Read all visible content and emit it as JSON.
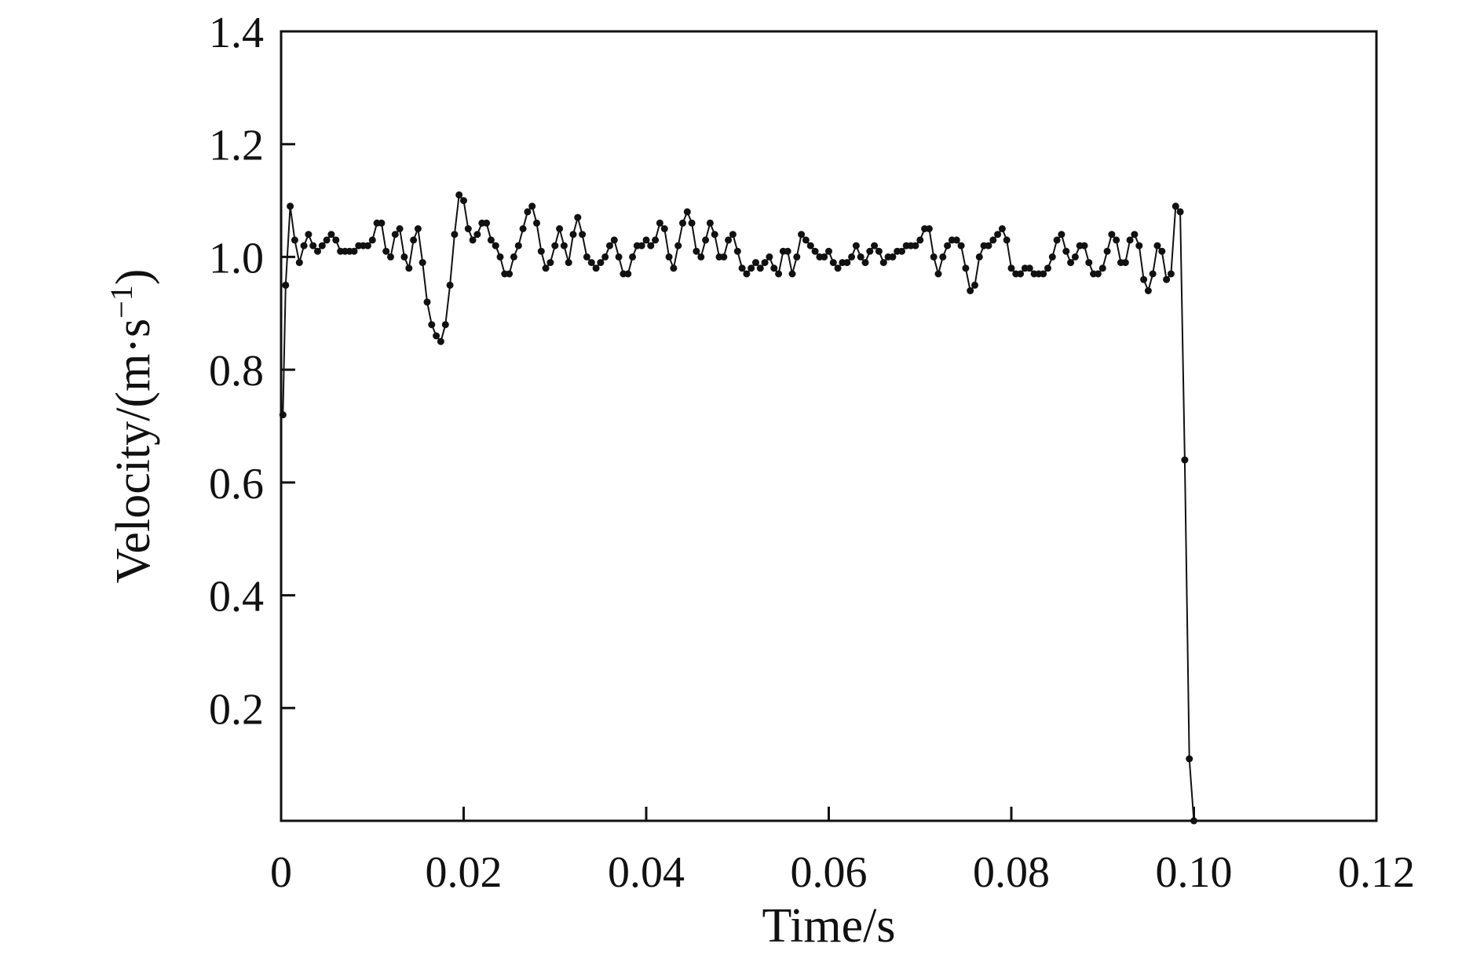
{
  "chart_data": {
    "type": "line",
    "title": "",
    "xlabel": "Time/s",
    "ylabel": "Velocity/(m·s",
    "ylabel_sup": "−1",
    "ylabel_close": ")",
    "xlim": [
      0,
      0.12
    ],
    "ylim": [
      0,
      1.4
    ],
    "x_ticks": [
      0,
      0.02,
      0.04,
      0.06,
      0.08,
      0.1,
      0.12
    ],
    "x_tick_labels": [
      "0",
      "0.02",
      "0.04",
      "0.06",
      "0.08",
      "0.10",
      "0.12"
    ],
    "y_ticks": [
      0.2,
      0.4,
      0.6,
      0.8,
      1.0,
      1.2,
      1.4
    ],
    "y_tick_labels": [
      "0.2",
      "0.4",
      "0.6",
      "0.8",
      "1.0",
      "1.2",
      "1.4"
    ],
    "grid": false,
    "legend": "none",
    "line_color": "#111111",
    "marker": "circle",
    "series": [
      {
        "x": [
          0.0002,
          0.0005,
          0.001,
          0.0015,
          0.002,
          0.0025,
          0.003,
          0.0035,
          0.004,
          0.0045,
          0.005,
          0.0055,
          0.006,
          0.0065,
          0.007,
          0.0075,
          0.008,
          0.0085,
          0.009,
          0.0095,
          0.01,
          0.0105,
          0.011,
          0.0115,
          0.012,
          0.0125,
          0.013,
          0.0135,
          0.014,
          0.0145,
          0.015,
          0.0155,
          0.016,
          0.0165,
          0.017,
          0.0175,
          0.018,
          0.0185,
          0.019,
          0.0195,
          0.02,
          0.0205,
          0.021,
          0.0215,
          0.022,
          0.0225,
          0.023,
          0.0235,
          0.024,
          0.0245,
          0.025,
          0.0255,
          0.026,
          0.0265,
          0.027,
          0.0275,
          0.028,
          0.0285,
          0.029,
          0.0295,
          0.03,
          0.0305,
          0.031,
          0.0315,
          0.032,
          0.0325,
          0.033,
          0.0335,
          0.034,
          0.0345,
          0.035,
          0.0355,
          0.036,
          0.0365,
          0.037,
          0.0375,
          0.038,
          0.0385,
          0.039,
          0.0395,
          0.04,
          0.0405,
          0.041,
          0.0415,
          0.042,
          0.0425,
          0.043,
          0.0435,
          0.044,
          0.0445,
          0.045,
          0.0455,
          0.046,
          0.0465,
          0.047,
          0.0475,
          0.048,
          0.0485,
          0.049,
          0.0495,
          0.05,
          0.0505,
          0.051,
          0.0515,
          0.052,
          0.0525,
          0.053,
          0.0535,
          0.054,
          0.0545,
          0.055,
          0.0555,
          0.056,
          0.0565,
          0.057,
          0.0575,
          0.058,
          0.0585,
          0.059,
          0.0595,
          0.06,
          0.0605,
          0.061,
          0.0615,
          0.062,
          0.0625,
          0.063,
          0.0635,
          0.064,
          0.0645,
          0.065,
          0.0655,
          0.066,
          0.0665,
          0.067,
          0.0675,
          0.068,
          0.0685,
          0.069,
          0.0695,
          0.07,
          0.0705,
          0.071,
          0.0715,
          0.072,
          0.0725,
          0.073,
          0.0735,
          0.074,
          0.0745,
          0.075,
          0.0755,
          0.076,
          0.0765,
          0.077,
          0.0775,
          0.078,
          0.0785,
          0.079,
          0.0795,
          0.08,
          0.0805,
          0.081,
          0.0815,
          0.082,
          0.0825,
          0.083,
          0.0835,
          0.084,
          0.0845,
          0.085,
          0.0855,
          0.086,
          0.0865,
          0.087,
          0.0875,
          0.088,
          0.0885,
          0.089,
          0.0895,
          0.09,
          0.0905,
          0.091,
          0.0915,
          0.092,
          0.0925,
          0.093,
          0.0935,
          0.094,
          0.0945,
          0.095,
          0.0955,
          0.096,
          0.0965,
          0.097,
          0.0975,
          0.098,
          0.0985,
          0.099,
          0.0995,
          0.1
        ],
        "y": [
          0.72,
          0.95,
          1.09,
          1.03,
          0.99,
          1.02,
          1.04,
          1.02,
          1.01,
          1.02,
          1.03,
          1.04,
          1.03,
          1.01,
          1.01,
          1.01,
          1.01,
          1.02,
          1.02,
          1.02,
          1.03,
          1.06,
          1.06,
          1.01,
          1.0,
          1.04,
          1.05,
          1.0,
          0.98,
          1.03,
          1.05,
          0.99,
          0.92,
          0.88,
          0.86,
          0.85,
          0.88,
          0.95,
          1.04,
          1.11,
          1.1,
          1.05,
          1.03,
          1.04,
          1.06,
          1.06,
          1.03,
          1.02,
          1.0,
          0.97,
          0.97,
          1.0,
          1.02,
          1.05,
          1.08,
          1.09,
          1.06,
          1.01,
          0.98,
          0.99,
          1.02,
          1.05,
          1.02,
          0.99,
          1.04,
          1.07,
          1.04,
          1.0,
          0.99,
          0.98,
          0.99,
          1.0,
          1.02,
          1.03,
          1.0,
          0.97,
          0.97,
          1.0,
          1.02,
          1.02,
          1.03,
          1.02,
          1.03,
          1.06,
          1.05,
          1.0,
          0.98,
          1.02,
          1.06,
          1.08,
          1.06,
          1.01,
          1.0,
          1.03,
          1.06,
          1.04,
          1.0,
          1.0,
          1.03,
          1.04,
          1.01,
          0.98,
          0.97,
          0.98,
          0.99,
          0.98,
          0.99,
          1.0,
          0.98,
          0.97,
          1.01,
          1.01,
          0.97,
          1.0,
          1.04,
          1.03,
          1.02,
          1.01,
          1.0,
          1.0,
          1.01,
          0.99,
          0.98,
          0.99,
          0.99,
          1.0,
          1.02,
          1.0,
          0.99,
          1.01,
          1.02,
          1.01,
          0.99,
          1.0,
          1.0,
          1.01,
          1.01,
          1.02,
          1.02,
          1.02,
          1.03,
          1.05,
          1.05,
          1.0,
          0.97,
          1.0,
          1.02,
          1.03,
          1.03,
          1.02,
          0.98,
          0.94,
          0.95,
          1.0,
          1.02,
          1.02,
          1.03,
          1.04,
          1.05,
          1.03,
          0.98,
          0.97,
          0.97,
          0.98,
          0.98,
          0.97,
          0.97,
          0.97,
          0.98,
          1.0,
          1.03,
          1.04,
          1.01,
          0.99,
          1.0,
          1.02,
          1.02,
          0.99,
          0.97,
          0.97,
          0.98,
          1.01,
          1.04,
          1.03,
          0.99,
          0.99,
          1.03,
          1.04,
          1.02,
          0.96,
          0.94,
          0.97,
          1.02,
          1.01,
          0.96,
          0.97,
          1.09,
          1.08,
          0.64,
          0.11,
          0.0
        ]
      }
    ]
  }
}
